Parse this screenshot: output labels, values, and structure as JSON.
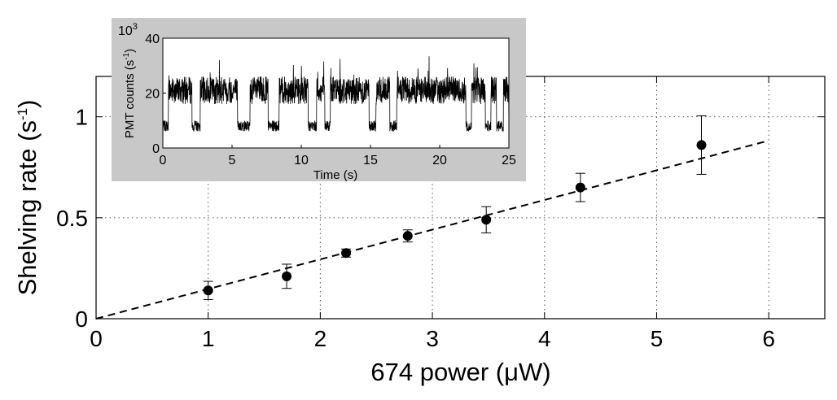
{
  "chart_data": [
    {
      "type": "scatter",
      "xlabel": "674 power (μW)",
      "ylabel_main": "Shelving rate (s",
      "ylabel_sup": "-1",
      "ylabel_close": ")",
      "xlim": [
        0,
        6.5
      ],
      "ylim": [
        0,
        1.2
      ],
      "xticks": [
        0,
        1,
        2,
        3,
        4,
        5,
        6
      ],
      "xtick_labels": [
        "0",
        "1",
        "2",
        "3",
        "4",
        "5",
        "6"
      ],
      "yticks": [
        0,
        0.5,
        1
      ],
      "ytick_labels": [
        "0",
        "0.5",
        "1"
      ],
      "grid": "dotted",
      "series": [
        {
          "marker": "filled-circle",
          "points": [
            {
              "x": 1.0,
              "y": 0.14,
              "err": 0.045
            },
            {
              "x": 1.7,
              "y": 0.21,
              "err": 0.06
            },
            {
              "x": 2.23,
              "y": 0.325,
              "err": 0.02
            },
            {
              "x": 2.78,
              "y": 0.41,
              "err": 0.03
            },
            {
              "x": 3.48,
              "y": 0.49,
              "err": 0.065
            },
            {
              "x": 4.32,
              "y": 0.65,
              "err": 0.07
            },
            {
              "x": 5.4,
              "y": 0.86,
              "err": 0.145
            }
          ]
        }
      ],
      "fit_line": {
        "style": "dashed",
        "x": [
          0,
          6.0
        ],
        "y": [
          0,
          0.882
        ]
      }
    },
    {
      "type": "line",
      "inset": true,
      "xlabel": "Time (s)",
      "ylabel_main": "PMT counts (s",
      "ylabel_sup": "-1",
      "ylabel_close": ")",
      "y_multiplier_base": "10",
      "y_multiplier_exp": "3",
      "xlim": [
        0,
        25
      ],
      "ylim": [
        0,
        40
      ],
      "xticks": [
        0,
        5,
        10,
        15,
        20,
        25
      ],
      "xtick_labels": [
        "0",
        "5",
        "10",
        "15",
        "20",
        "25"
      ],
      "yticks": [
        0,
        20,
        40
      ],
      "ytick_labels": [
        "0",
        "20",
        "40"
      ],
      "background": "#c8c8c8",
      "levels": {
        "bright": 21,
        "dark": 8
      },
      "bright_intervals": [
        [
          0.4,
          2.1
        ],
        [
          2.7,
          5.4
        ],
        [
          6.3,
          7.6
        ],
        [
          8.4,
          10.5
        ],
        [
          11.1,
          11.7
        ],
        [
          12.1,
          14.9
        ],
        [
          15.4,
          16.4
        ],
        [
          16.9,
          21.9
        ],
        [
          22.3,
          23.3
        ],
        [
          23.7,
          24.1
        ],
        [
          24.6,
          25.0
        ]
      ]
    }
  ],
  "colors": {
    "ink": "#000000",
    "grid": "#555555",
    "inset_bg": "#c8c8c8"
  }
}
